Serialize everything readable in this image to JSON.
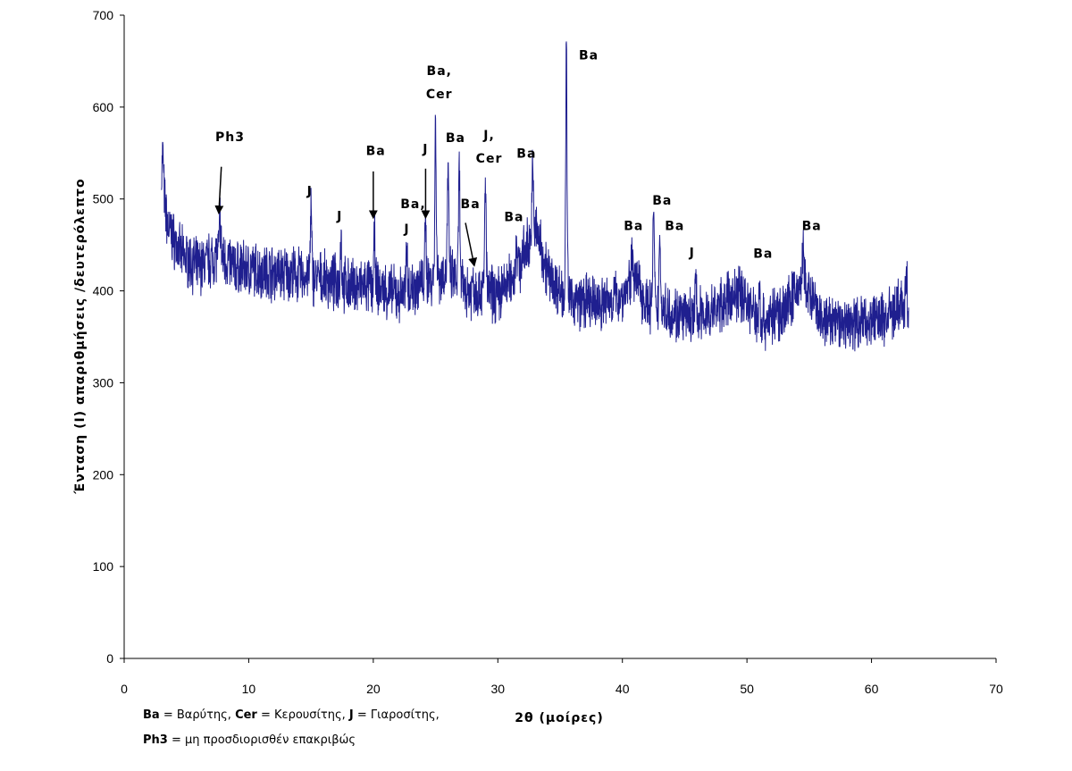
{
  "chart_data": {
    "type": "line",
    "xlabel": "2θ (μοίρες)",
    "ylabel": "Ένταση (I) απαριθμήσεις /δευτερόλεπτο",
    "xlim": [
      0,
      70
    ],
    "ylim": [
      0,
      700
    ],
    "xticks": [
      "0",
      "10",
      "20",
      "30",
      "40",
      "50",
      "60",
      "70"
    ],
    "yticks": [
      "0",
      "100",
      "200",
      "300",
      "400",
      "500",
      "600",
      "700"
    ],
    "grid": false,
    "line_color": "#1f1f8f",
    "series": [
      {
        "baseline": [
          [
            3.0,
            520
          ],
          [
            3.5,
            470
          ],
          [
            4.5,
            440
          ],
          [
            6.0,
            425
          ],
          [
            7.5,
            440
          ],
          [
            9.0,
            425
          ],
          [
            12.0,
            420
          ],
          [
            15.0,
            415
          ],
          [
            18.0,
            405
          ],
          [
            20.0,
            405
          ],
          [
            22.0,
            395
          ],
          [
            24.0,
            410
          ],
          [
            26.0,
            420
          ],
          [
            27.5,
            400
          ],
          [
            29.0,
            400
          ],
          [
            30.0,
            395
          ],
          [
            31.5,
            420
          ],
          [
            33.0,
            470
          ],
          [
            34.0,
            420
          ],
          [
            35.0,
            400
          ],
          [
            36.0,
            390
          ],
          [
            38.0,
            385
          ],
          [
            40.0,
            395
          ],
          [
            41.0,
            415
          ],
          [
            42.0,
            385
          ],
          [
            43.5,
            380
          ],
          [
            45.0,
            370
          ],
          [
            47.0,
            375
          ],
          [
            49.5,
            400
          ],
          [
            51.0,
            365
          ],
          [
            53.0,
            380
          ],
          [
            54.5,
            410
          ],
          [
            56.0,
            365
          ],
          [
            58.0,
            365
          ],
          [
            61.0,
            370
          ],
          [
            62.5,
            385
          ],
          [
            63.0,
            370
          ]
        ],
        "peaks": [
          [
            3.1,
            560
          ],
          [
            7.7,
            490
          ],
          [
            15.0,
            497
          ],
          [
            17.4,
            470
          ],
          [
            20.1,
            468
          ],
          [
            22.7,
            455
          ],
          [
            24.2,
            480
          ],
          [
            25.0,
            590
          ],
          [
            26.0,
            540
          ],
          [
            26.9,
            540
          ],
          [
            28.0,
            420
          ],
          [
            29.0,
            535
          ],
          [
            31.5,
            470
          ],
          [
            32.8,
            540
          ],
          [
            35.5,
            665
          ],
          [
            40.8,
            460
          ],
          [
            42.5,
            497
          ],
          [
            43.0,
            470
          ],
          [
            45.9,
            420
          ],
          [
            51.0,
            420
          ],
          [
            54.5,
            455
          ],
          [
            62.8,
            435
          ]
        ]
      }
    ],
    "annotations": [
      {
        "id": "ph3",
        "lines": [
          "Ph3"
        ],
        "x": 8.5,
        "y": 563
      },
      {
        "id": "ba-20",
        "lines": [
          "Ba"
        ],
        "x": 20.2,
        "y": 548
      },
      {
        "id": "j-15",
        "lines": [
          "J"
        ],
        "x": 14.9,
        "y": 504
      },
      {
        "id": "j-17",
        "lines": [
          "J"
        ],
        "x": 17.3,
        "y": 477
      },
      {
        "id": "ba-comma-23",
        "lines": [
          "Ba,"
        ],
        "x": 23.2,
        "y": 490
      },
      {
        "id": "j-22",
        "lines": [
          "J"
        ],
        "x": 22.7,
        "y": 463
      },
      {
        "id": "j-24",
        "lines": [
          "J"
        ],
        "x": 24.2,
        "y": 550
      },
      {
        "id": "ba-cer-25",
        "lines": [
          "Ba,",
          "Cer"
        ],
        "x": 25.3,
        "y": 635
      },
      {
        "id": "ba-27",
        "lines": [
          "Ba"
        ],
        "x": 26.6,
        "y": 562
      },
      {
        "id": "ba-28",
        "lines": [
          "Ba"
        ],
        "x": 27.8,
        "y": 490
      },
      {
        "id": "j-cer-29",
        "lines": [
          "J,",
          "Cer"
        ],
        "x": 29.3,
        "y": 565
      },
      {
        "id": "ba-31",
        "lines": [
          "Ba"
        ],
        "x": 31.3,
        "y": 476
      },
      {
        "id": "ba-33",
        "lines": [
          "Ba"
        ],
        "x": 32.3,
        "y": 545
      },
      {
        "id": "ba-35",
        "lines": [
          "Ba"
        ],
        "x": 37.3,
        "y": 652
      },
      {
        "id": "ba-41",
        "lines": [
          "Ba"
        ],
        "x": 40.9,
        "y": 466
      },
      {
        "id": "ba-43a",
        "lines": [
          "Ba"
        ],
        "x": 43.2,
        "y": 494
      },
      {
        "id": "ba-43b",
        "lines": [
          "Ba"
        ],
        "x": 44.2,
        "y": 466
      },
      {
        "id": "j-46",
        "lines": [
          "J"
        ],
        "x": 45.6,
        "y": 437
      },
      {
        "id": "ba-51",
        "lines": [
          "Ba"
        ],
        "x": 51.3,
        "y": 436
      },
      {
        "id": "ba-55",
        "lines": [
          "Ba"
        ],
        "x": 55.2,
        "y": 466
      }
    ],
    "arrows": [
      {
        "from": [
          7.8,
          535
        ],
        "to": [
          7.6,
          485
        ]
      },
      {
        "from": [
          20.0,
          530
        ],
        "to": [
          20.0,
          480
        ]
      },
      {
        "from": [
          24.2,
          533
        ],
        "to": [
          24.2,
          480
        ]
      },
      {
        "from": [
          27.4,
          474
        ],
        "to": [
          28.1,
          428
        ]
      }
    ]
  },
  "legend": {
    "line1": [
      {
        "key": "Ba",
        "text": " = Βαρύτης,  "
      },
      {
        "key": "Cer",
        "text": " = Κερουσίτης, "
      },
      {
        "key": "J",
        "text": " = Γιαροσίτης,"
      }
    ],
    "line2": [
      {
        "key": "Ph3",
        "text": " = μη προσδιορισθέν επακριβώς"
      }
    ]
  }
}
